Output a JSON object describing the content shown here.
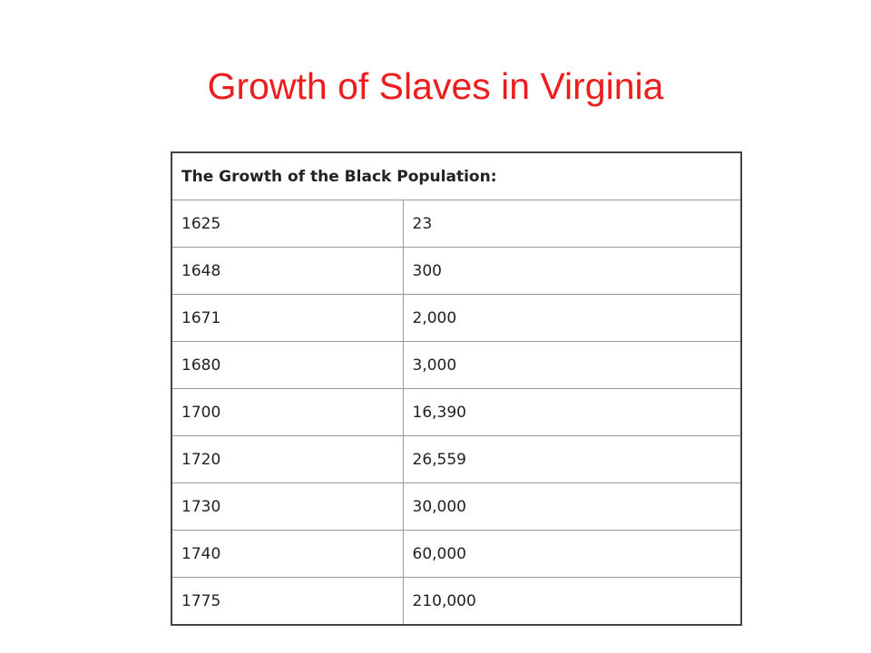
{
  "title": "Growth of Slaves in Virginia",
  "table": {
    "header": "The Growth of the Black Population:",
    "rows": [
      [
        "1625",
        "23"
      ],
      [
        "1648",
        "300"
      ],
      [
        "1671",
        "2,000"
      ],
      [
        "1680",
        "3,000"
      ],
      [
        "1700",
        "16,390"
      ],
      [
        "1720",
        "26,559"
      ],
      [
        "1730",
        "30,000"
      ],
      [
        "1740",
        "60,000"
      ],
      [
        "1775",
        "210,000"
      ]
    ]
  }
}
